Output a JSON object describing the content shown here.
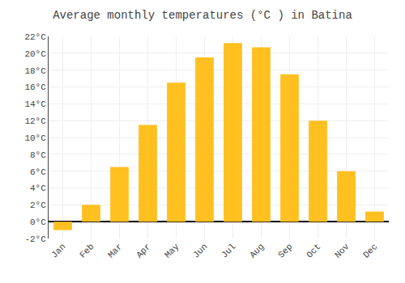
{
  "chart_data": {
    "type": "bar",
    "title": "Average monthly temperatures (°C ) in Batina",
    "categories": [
      "Jan",
      "Feb",
      "Mar",
      "Apr",
      "May",
      "Jun",
      "Jul",
      "Aug",
      "Sep",
      "Oct",
      "Nov",
      "Dec"
    ],
    "values": [
      -1.0,
      2.0,
      6.5,
      11.5,
      16.5,
      19.5,
      21.2,
      20.7,
      17.5,
      12.0,
      6.0,
      1.2
    ],
    "color": "#FFC020",
    "ylim": [
      -2,
      22
    ],
    "yticks": [
      {
        "value": -2,
        "label": "-2°C"
      },
      {
        "value": 0,
        "label": "0°C"
      },
      {
        "value": 2,
        "label": "2°C"
      },
      {
        "value": 4,
        "label": "4°C"
      },
      {
        "value": 6,
        "label": "6°C"
      },
      {
        "value": 8,
        "label": "8°C"
      },
      {
        "value": 10,
        "label": "10°C"
      },
      {
        "value": 12,
        "label": "12°C"
      },
      {
        "value": 14,
        "label": "14°C"
      },
      {
        "value": 16,
        "label": "16°C"
      },
      {
        "value": 18,
        "label": "18°C"
      },
      {
        "value": 20,
        "label": "20°C"
      },
      {
        "value": 22,
        "label": "22°C"
      }
    ],
    "grid": true
  }
}
